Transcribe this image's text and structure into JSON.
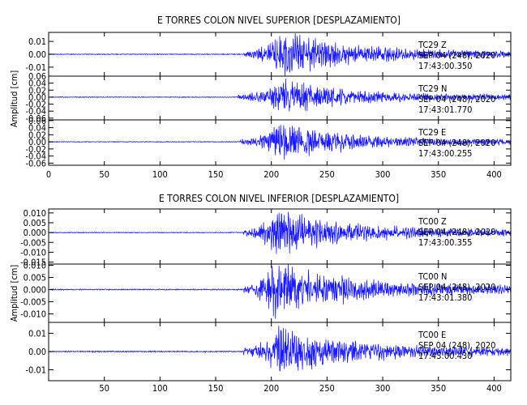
{
  "chart_data": [
    {
      "type": "line",
      "title": "E TORRES COLON NIVEL SUPERIOR [DESPLAZAMIENTO]",
      "ylabel": "Amplitud [cm]",
      "xlabel": "",
      "xlim": [
        0,
        415
      ],
      "xticks": [
        "0",
        "50",
        "100",
        "150",
        "200",
        "250",
        "300",
        "350",
        "400"
      ],
      "xtick_values": [
        0,
        50,
        100,
        150,
        200,
        250,
        300,
        350,
        400
      ],
      "series_color": "#1a1aff",
      "panels": [
        {
          "station": "TC29",
          "component": "Z",
          "date": "SEP 04 (248), 2020",
          "time": "17:43:00.350",
          "ylim": [
            -0.017,
            0.017
          ],
          "yticks": [
            "0.01",
            "0.00",
            "-0.01"
          ],
          "ytick_values": [
            0.01,
            0.0,
            -0.01
          ],
          "onset": 175,
          "peak_time": 210,
          "peak_amplitude": 0.016,
          "noise": 0.0003
        },
        {
          "station": "TC29",
          "component": "N",
          "date": "SEP 04 (248), 2020",
          "time": "17:43:01.770",
          "ylim": [
            -0.065,
            0.06
          ],
          "yticks": [
            "0.06",
            "0.04",
            "0.02",
            "0.00",
            "-0.02",
            "-0.04",
            "-0.06"
          ],
          "ytick_values": [
            0.06,
            0.04,
            0.02,
            0.0,
            -0.02,
            -0.04,
            -0.06
          ],
          "onset": 170,
          "peak_time": 212,
          "peak_amplitude": 0.045,
          "noise": 0.001
        },
        {
          "station": "TC29",
          "component": "E",
          "date": "SEP 04 (248), 2020",
          "time": "17:43:00.255",
          "ylim": [
            -0.066,
            0.062
          ],
          "yticks": [
            "0.06",
            "0.04",
            "0.02",
            "0.00",
            "-0.02",
            "-0.04",
            "-0.06"
          ],
          "ytick_values": [
            0.06,
            0.04,
            0.02,
            0.0,
            -0.02,
            -0.04,
            -0.06
          ],
          "onset": 172,
          "peak_time": 210,
          "peak_amplitude": 0.05,
          "noise": 0.001
        }
      ]
    },
    {
      "type": "line",
      "title": "E TORRES COLON NIVEL INFERIOR [DESPLAZAMIENTO]",
      "ylabel": "Amplitud [cm]",
      "xlabel": "",
      "xlim": [
        0,
        415
      ],
      "xticks": [
        "50",
        "100",
        "150",
        "200",
        "250",
        "300",
        "350",
        "400"
      ],
      "xtick_values": [
        50,
        100,
        150,
        200,
        250,
        300,
        350,
        400
      ],
      "series_color": "#1a1aff",
      "panels": [
        {
          "station": "TC00",
          "component": "Z",
          "date": "SEP 04 (248), 2020",
          "time": "17:43:00.355",
          "ylim": [
            -0.016,
            0.012
          ],
          "yticks": [
            "0.010",
            "0.005",
            "0.000",
            "-0.005",
            "-0.010",
            "-0.015"
          ],
          "ytick_values": [
            0.01,
            0.005,
            0.0,
            -0.005,
            -0.01,
            -0.015
          ],
          "onset": 175,
          "peak_time": 207,
          "peak_amplitude": 0.011,
          "noise": 0.0002
        },
        {
          "station": "TC00",
          "component": "N",
          "date": "SEP 04 (248), 2020",
          "time": "17:43:01.380",
          "ylim": [
            -0.0135,
            0.0105
          ],
          "yticks": [
            "0.010",
            "0.005",
            "0.000",
            "-0.005",
            "-0.010"
          ],
          "ytick_values": [
            0.01,
            0.005,
            0.0,
            -0.005,
            -0.01
          ],
          "onset": 175,
          "peak_time": 205,
          "peak_amplitude": 0.011,
          "noise": 0.0002
        },
        {
          "station": "TC00",
          "component": "E",
          "date": "SEP 04 (248), 2020",
          "time": "17:43:00.430",
          "ylim": [
            -0.016,
            0.016
          ],
          "yticks": [
            "0.01",
            "0.00",
            "-0.01"
          ],
          "ytick_values": [
            0.01,
            0.0,
            -0.01
          ],
          "onset": 175,
          "peak_time": 210,
          "peak_amplitude": 0.013,
          "noise": 0.0003
        }
      ]
    }
  ]
}
